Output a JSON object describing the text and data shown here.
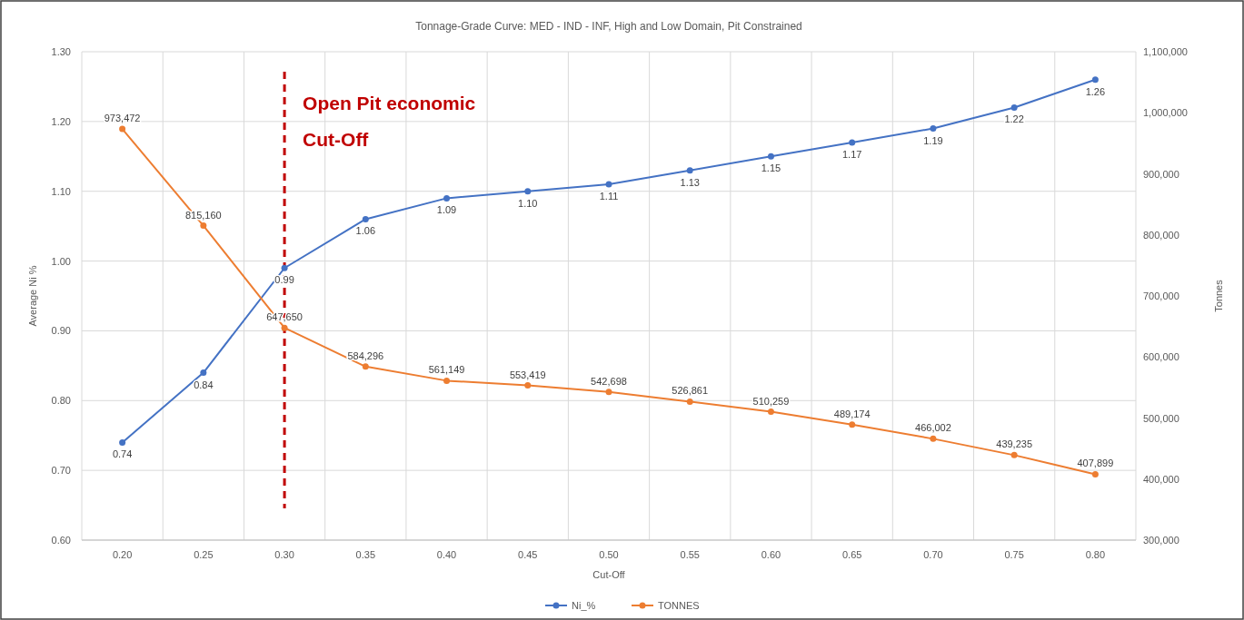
{
  "chart_data": {
    "type": "line",
    "title": "Tonnage-Grade Curve: MED - IND - INF, High and Low Domain, Pit Constrained",
    "xlabel": "Cut-Off",
    "ylabel": "Average Ni %",
    "y2label": "Tonnes",
    "categories": [
      "0.20",
      "0.25",
      "0.30",
      "0.35",
      "0.40",
      "0.45",
      "0.50",
      "0.55",
      "0.60",
      "0.65",
      "0.70",
      "0.75",
      "0.80"
    ],
    "series": [
      {
        "name": "Ni_%",
        "color": "#4472c4",
        "values": [
          0.74,
          0.84,
          0.99,
          1.06,
          1.09,
          1.1,
          1.11,
          1.13,
          1.15,
          1.17,
          1.19,
          1.22,
          1.26
        ],
        "value_labels": [
          "0.74",
          "0.84",
          "0.99",
          "1.06",
          "1.09",
          "1.10",
          "1.11",
          "1.13",
          "1.15",
          "1.17",
          "1.19",
          "1.22",
          "1.26"
        ]
      },
      {
        "name": "TONNES",
        "color": "#ed7d31",
        "axis": "y2",
        "values": [
          973472,
          815160,
          647650,
          584296,
          561149,
          553419,
          542698,
          526861,
          510259,
          489174,
          466002,
          439235,
          407899
        ],
        "value_labels": [
          "973,472",
          "815,160",
          "647,650",
          "584,296",
          "561,149",
          "553,419",
          "542,698",
          "526,861",
          "510,259",
          "489,174",
          "466,002",
          "439,235",
          "407,899"
        ]
      }
    ],
    "ylim": [
      0.6,
      1.3
    ],
    "yticks": [
      {
        "value": 0.6,
        "label": "0.60"
      },
      {
        "value": 0.7,
        "label": "0.70"
      },
      {
        "value": 0.8,
        "label": "0.80"
      },
      {
        "value": 0.9,
        "label": "0.90"
      },
      {
        "value": 1.0,
        "label": "1.00"
      },
      {
        "value": 1.1,
        "label": "1.10"
      },
      {
        "value": 1.2,
        "label": "1.20"
      },
      {
        "value": 1.3,
        "label": "1.30"
      }
    ],
    "y2lim": [
      300000,
      1100000
    ],
    "y2ticks": [
      {
        "value": 300000,
        "label": "300,000"
      },
      {
        "value": 400000,
        "label": "400,000"
      },
      {
        "value": 500000,
        "label": "500,000"
      },
      {
        "value": 600000,
        "label": "600,000"
      },
      {
        "value": 700000,
        "label": "700,000"
      },
      {
        "value": 800000,
        "label": "800,000"
      },
      {
        "value": 900000,
        "label": "900,000"
      },
      {
        "value": 1000000,
        "label": "1,000,000"
      },
      {
        "value": 1100000,
        "label": "1,100,000"
      }
    ],
    "ref_lines": [
      {
        "axis": "x",
        "value": "0.30",
        "label": "Open Pit economic Cut-Off",
        "color": "#c00000",
        "line_style": "dashed"
      }
    ],
    "grid": true,
    "legend": "bottom",
    "marker": "circle",
    "line_style": "solid"
  }
}
